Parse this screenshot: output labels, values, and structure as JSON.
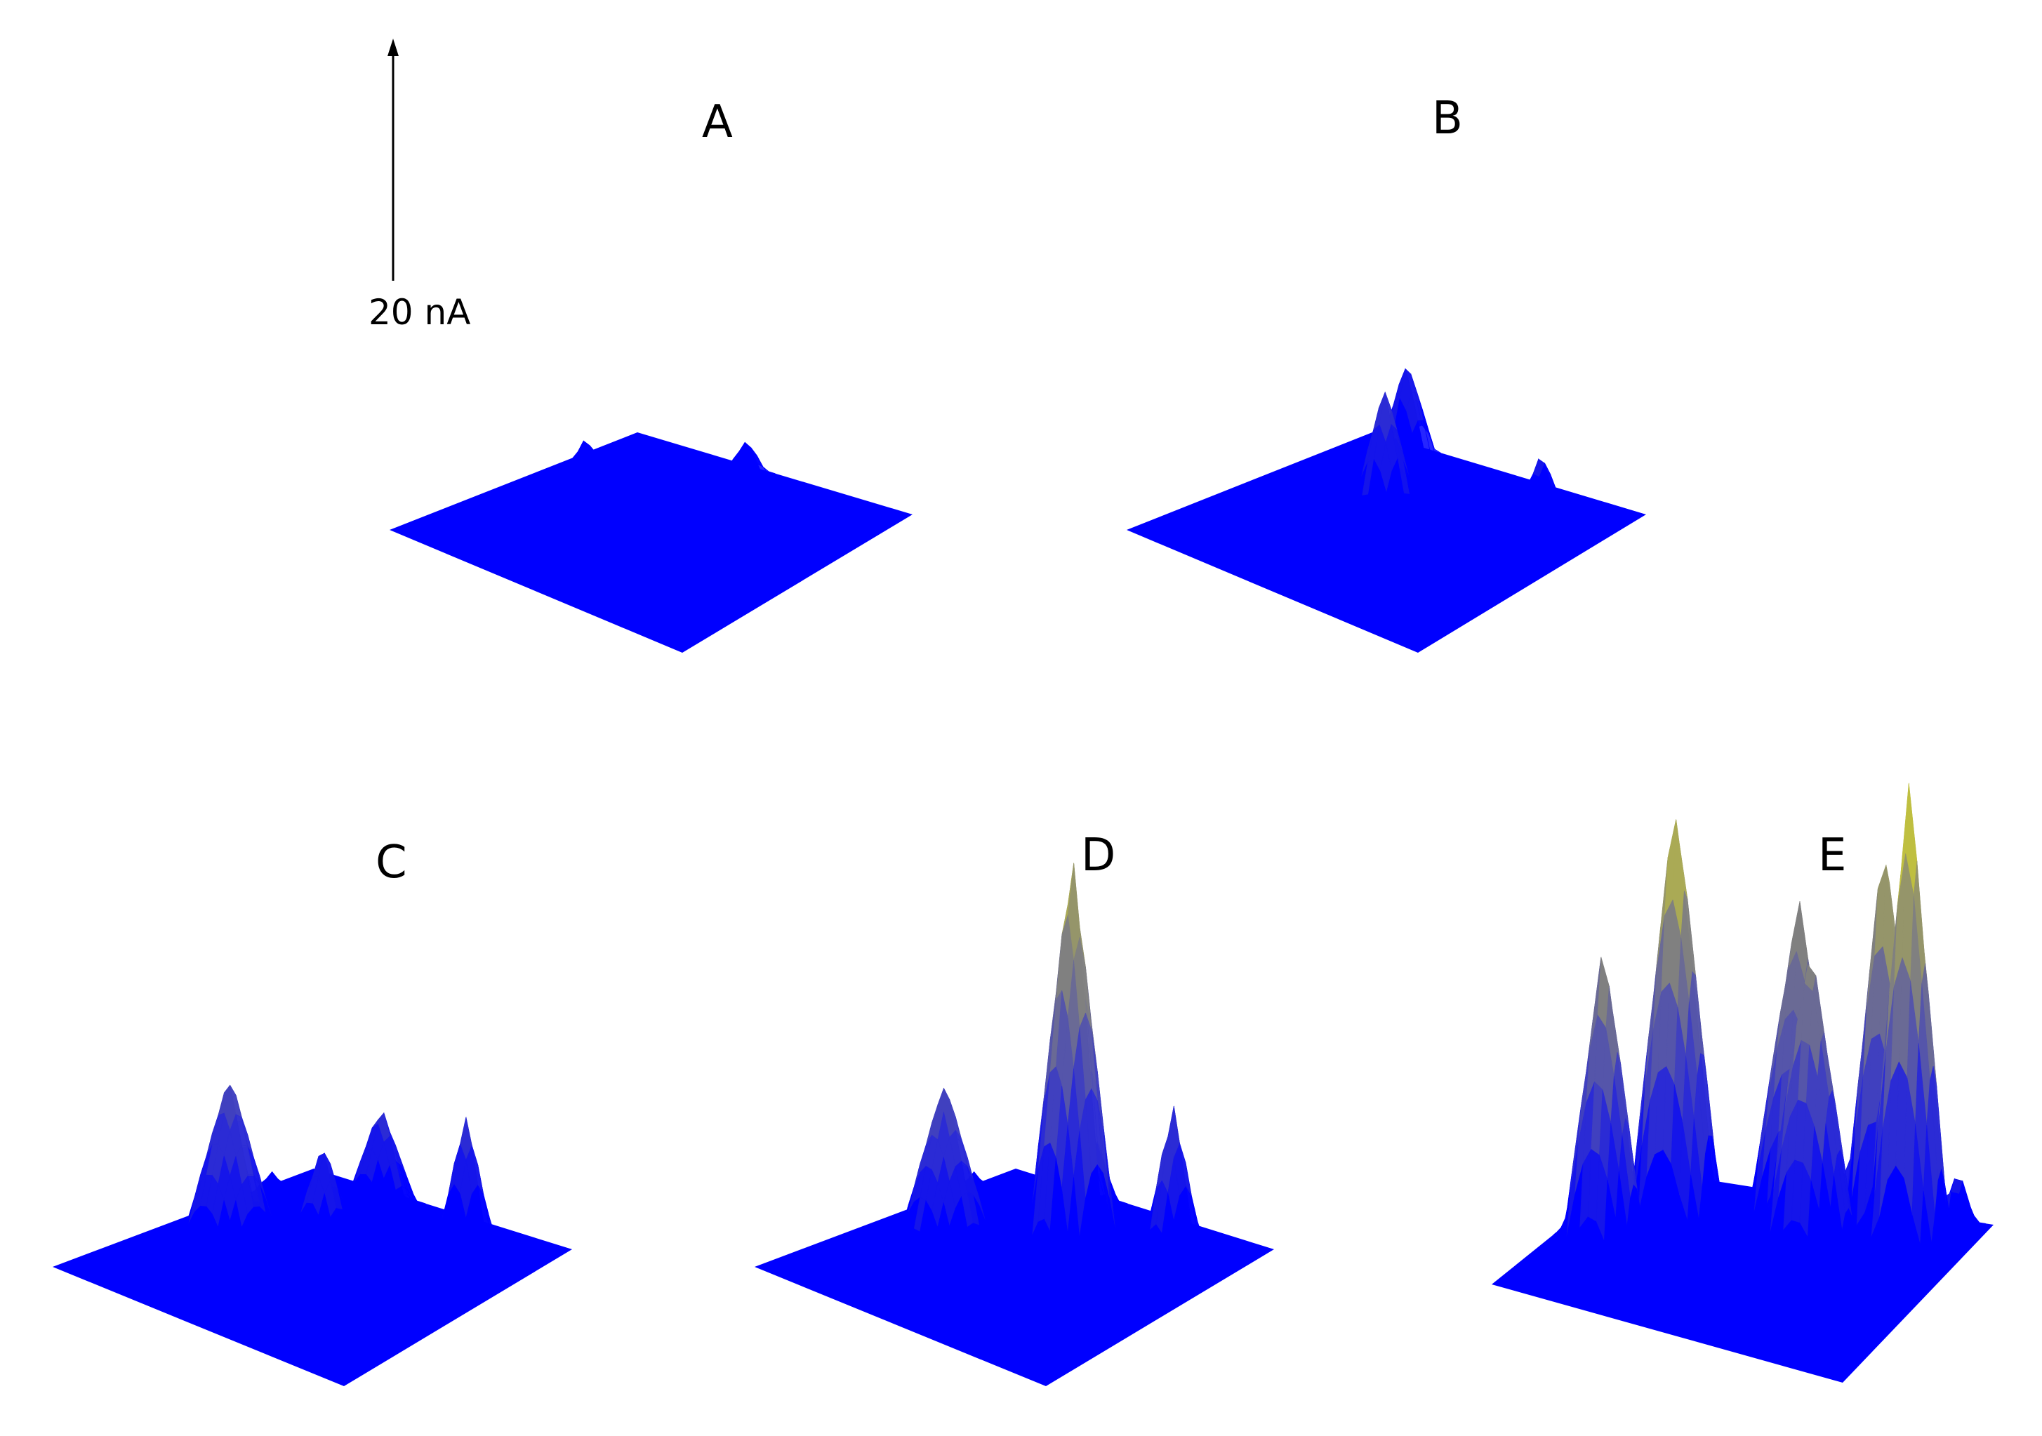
{
  "chart_data": {
    "type": "surface-3d",
    "scale_bar": {
      "label": "20 nA",
      "value": 20,
      "unit": "nA"
    },
    "colors": {
      "low": "#0000ff",
      "high": "#ffff00",
      "background": "#ffffff"
    },
    "panels": [
      {
        "label": "A",
        "peaks": [
          {
            "u": 0.1,
            "v": 0.32,
            "height": 3,
            "spread": 0.022
          },
          {
            "u": 0.44,
            "v": 0.05,
            "height": 3,
            "spread": 0.022
          }
        ]
      },
      {
        "label": "B",
        "peaks": [
          {
            "u": 0.45,
            "v": 0.45,
            "height": 11,
            "spread": 0.035
          },
          {
            "u": 0.18,
            "v": 0.06,
            "height": 8,
            "spread": 0.03
          },
          {
            "u": 0.76,
            "v": 0.16,
            "height": 5,
            "spread": 0.025
          }
        ]
      },
      {
        "label": "C",
        "peaks": [
          {
            "u": 0.38,
            "v": 0.12,
            "height": 9,
            "spread": 0.04
          },
          {
            "u": 0.22,
            "v": 0.54,
            "height": 14,
            "spread": 0.05
          },
          {
            "u": 0.4,
            "v": 0.36,
            "height": 8,
            "spread": 0.032
          },
          {
            "u": 0.73,
            "v": 0.14,
            "height": 11,
            "spread": 0.03
          },
          {
            "u": 0.05,
            "v": 0.21,
            "height": 2,
            "spread": 0.02
          }
        ]
      },
      {
        "label": "D",
        "peaks": [
          {
            "u": 0.28,
            "v": 0.55,
            "height": 14,
            "spread": 0.05
          },
          {
            "u": 0.38,
            "v": 0.12,
            "height": 9,
            "spread": 0.04
          },
          {
            "u": 0.45,
            "v": 0.23,
            "height": 32,
            "spread": 0.045
          },
          {
            "u": 0.75,
            "v": 0.14,
            "height": 12,
            "spread": 0.03
          },
          {
            "u": 0.05,
            "v": 0.21,
            "height": 2,
            "spread": 0.02
          }
        ]
      },
      {
        "label": "E",
        "peaks": [
          {
            "u": 0.12,
            "v": 0.52,
            "height": 25,
            "spread": 0.04
          },
          {
            "u": 0.2,
            "v": 0.22,
            "height": 35,
            "spread": 0.045
          },
          {
            "u": 0.52,
            "v": 0.16,
            "height": 27,
            "spread": 0.05
          },
          {
            "u": 0.6,
            "v": 0.28,
            "height": 25,
            "spread": 0.045
          },
          {
            "u": 0.72,
            "v": 0.06,
            "height": 33,
            "spread": 0.04
          },
          {
            "u": 0.82,
            "v": 0.14,
            "height": 39,
            "spread": 0.04
          },
          {
            "u": 0.92,
            "v": 0.05,
            "height": 5,
            "spread": 0.02
          }
        ]
      }
    ]
  }
}
